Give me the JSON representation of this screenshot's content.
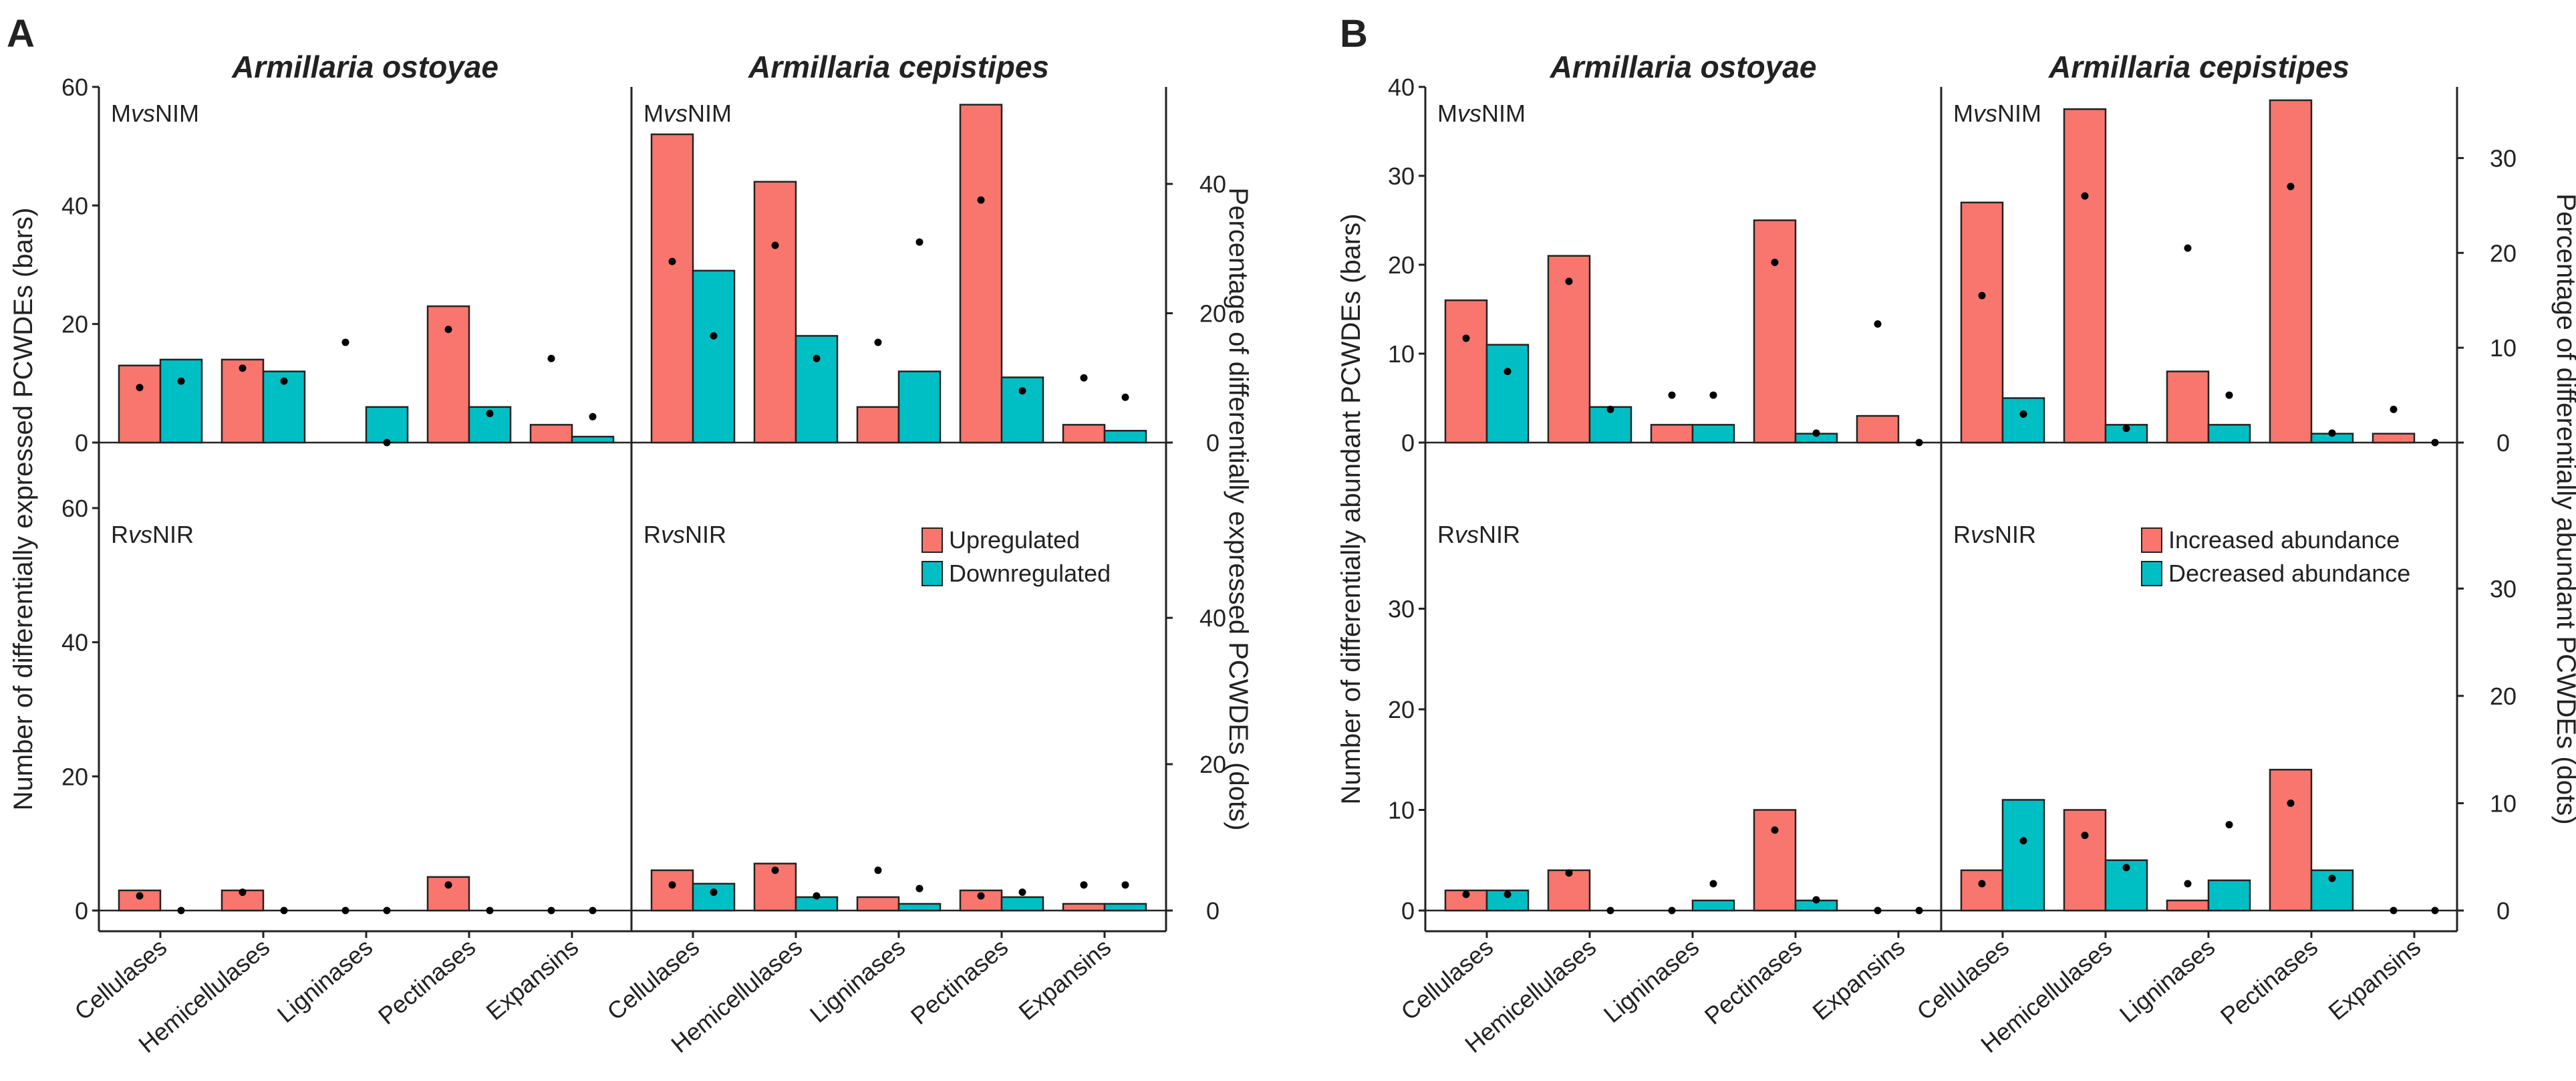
{
  "colors": {
    "up": "#F8766D",
    "down": "#00BFC4",
    "axis": "#222222",
    "dot": "#000000"
  },
  "categories": [
    "Cellulases",
    "Hemicellulases",
    "Ligninases",
    "Pectinases",
    "Expansins"
  ],
  "panels": [
    {
      "letter": "A",
      "species": [
        "Armillaria ostoyae",
        "Armillaria cepistipes"
      ],
      "ylabel_left": "Number of differentially expressed PCWDEs (bars)",
      "ylabel_right": "Percentage of differentially expressed PCWDEs (dots)",
      "left_ticks": [
        0,
        20,
        40,
        60
      ],
      "right_ticks": [
        0,
        20,
        40
      ],
      "left_lim": [
        0,
        60
      ],
      "right_lim": [
        0,
        55
      ],
      "legend": [
        "Upregulated",
        "Downregulated"
      ],
      "rows": [
        {
          "label": {
            "pre": "M",
            "vs": "vs",
            "post": "NIM"
          },
          "show_top_tick": true,
          "facets": [
            {
              "up": [
                13,
                14,
                0,
                23,
                3
              ],
              "down": [
                14,
                12,
                6,
                6,
                1
              ],
              "up_pct": [
                8.5,
                11.5,
                15.5,
                17.5,
                13
              ],
              "down_pct": [
                9.5,
                9.5,
                0,
                4.5,
                4
              ]
            },
            {
              "up": [
                52,
                44,
                6,
                57,
                3
              ],
              "down": [
                29,
                18,
                12,
                11,
                2
              ],
              "up_pct": [
                28,
                30.5,
                15.5,
                37.5,
                10
              ],
              "down_pct": [
                16.5,
                13,
                31,
                8,
                7
              ]
            }
          ]
        },
        {
          "label": {
            "pre": "R",
            "vs": "vs",
            "post": "NIR"
          },
          "show_top_tick": false,
          "facets": [
            {
              "up": [
                3,
                3,
                0,
                5,
                0
              ],
              "down": [
                0,
                0,
                0,
                0,
                0
              ],
              "up_pct": [
                2,
                2.5,
                0,
                3.5,
                0
              ],
              "down_pct": [
                0,
                0,
                0,
                0,
                0
              ]
            },
            {
              "up": [
                6,
                7,
                2,
                3,
                1
              ],
              "down": [
                4,
                2,
                1,
                2,
                1
              ],
              "up_pct": [
                3.5,
                5.5,
                5.5,
                2,
                3.5
              ],
              "down_pct": [
                2.5,
                2,
                3,
                2.5,
                3.5
              ]
            }
          ]
        }
      ]
    },
    {
      "letter": "B",
      "species": [
        "Armillaria ostoyae",
        "Armillaria cepistipes"
      ],
      "ylabel_left": "Number of differentially abundant PCWDEs (bars)",
      "ylabel_right": "Percentage of differentially abundant PCWDEs (dots)",
      "left_ticks": [
        0,
        10,
        20,
        30,
        40
      ],
      "right_ticks": [
        0,
        10,
        20,
        30
      ],
      "left_lim": [
        0,
        40
      ],
      "right_lim": [
        0,
        37.5
      ],
      "legend": [
        "Increased abundance",
        "Decreased abundance"
      ],
      "rows": [
        {
          "label": {
            "pre": "M",
            "vs": "vs",
            "post": "NIM"
          },
          "show_top_tick": true,
          "facets": [
            {
              "up": [
                16,
                21,
                2,
                25,
                3
              ],
              "down": [
                11,
                4,
                2,
                1,
                0
              ],
              "up_pct": [
                11,
                17,
                5,
                19,
                12.5
              ],
              "down_pct": [
                7.5,
                3.5,
                5,
                1,
                0
              ]
            },
            {
              "up": [
                27,
                37.5,
                8,
                38.5,
                1
              ],
              "down": [
                5,
                2,
                2,
                1,
                0
              ],
              "up_pct": [
                15.5,
                26,
                20.5,
                27,
                3.5
              ],
              "down_pct": [
                3,
                1.5,
                5,
                1,
                0
              ]
            }
          ]
        },
        {
          "label": {
            "pre": "R",
            "vs": "vs",
            "post": "NIR"
          },
          "show_top_tick": false,
          "facets": [
            {
              "up": [
                2,
                4,
                0,
                10,
                0
              ],
              "down": [
                2,
                0,
                1,
                1,
                0
              ],
              "up_pct": [
                1.5,
                3.5,
                0,
                7.5,
                0
              ],
              "down_pct": [
                1.5,
                0,
                2.5,
                1,
                0
              ]
            },
            {
              "up": [
                4,
                10,
                1,
                14,
                0
              ],
              "down": [
                11,
                5,
                3,
                4,
                0
              ],
              "up_pct": [
                2.5,
                7,
                2.5,
                10,
                0
              ],
              "down_pct": [
                6.5,
                4,
                8,
                3,
                0
              ]
            }
          ]
        }
      ]
    }
  ],
  "chart_data": [
    {
      "type": "bar",
      "title": "A",
      "ylabel": "Number of differentially expressed PCWDEs (bars)",
      "y2label": "Percentage of differentially expressed PCWDEs (dots)",
      "categories": [
        "Cellulases",
        "Hemicellulases",
        "Ligninases",
        "Pectinases",
        "Expansins"
      ],
      "ylim": [
        0,
        60
      ],
      "y2lim": [
        0,
        55
      ],
      "series": [
        {
          "name": "A. ostoyae MvsNIM Upregulated",
          "values": [
            13,
            14,
            0,
            23,
            3
          ]
        },
        {
          "name": "A. ostoyae MvsNIM Downregulated",
          "values": [
            14,
            12,
            6,
            6,
            1
          ]
        },
        {
          "name": "A. cepistipes MvsNIM Upregulated",
          "values": [
            52,
            44,
            6,
            57,
            3
          ]
        },
        {
          "name": "A. cepistipes MvsNIM Downregulated",
          "values": [
            29,
            18,
            12,
            11,
            2
          ]
        },
        {
          "name": "A. ostoyae RvsNIR Upregulated",
          "values": [
            3,
            3,
            0,
            5,
            0
          ]
        },
        {
          "name": "A. ostoyae RvsNIR Downregulated",
          "values": [
            0,
            0,
            0,
            0,
            0
          ]
        },
        {
          "name": "A. cepistipes RvsNIR Upregulated",
          "values": [
            6,
            7,
            2,
            3,
            1
          ]
        },
        {
          "name": "A. cepistipes RvsNIR Downregulated",
          "values": [
            4,
            2,
            1,
            2,
            1
          ]
        }
      ]
    },
    {
      "type": "bar",
      "title": "B",
      "ylabel": "Number of differentially abundant PCWDEs (bars)",
      "y2label": "Percentage of differentially abundant PCWDEs (dots)",
      "categories": [
        "Cellulases",
        "Hemicellulases",
        "Ligninases",
        "Pectinases",
        "Expansins"
      ],
      "ylim": [
        0,
        40
      ],
      "y2lim": [
        0,
        37.5
      ],
      "series": [
        {
          "name": "A. ostoyae MvsNIM Increased abundance",
          "values": [
            16,
            21,
            2,
            25,
            3
          ]
        },
        {
          "name": "A. ostoyae MvsNIM Decreased abundance",
          "values": [
            11,
            4,
            2,
            1,
            0
          ]
        },
        {
          "name": "A. cepistipes MvsNIM Increased abundance",
          "values": [
            27,
            37.5,
            8,
            38.5,
            1
          ]
        },
        {
          "name": "A. cepistipes MvsNIM Decreased abundance",
          "values": [
            5,
            2,
            2,
            1,
            0
          ]
        },
        {
          "name": "A. ostoyae RvsNIR Increased abundance",
          "values": [
            2,
            4,
            0,
            10,
            0
          ]
        },
        {
          "name": "A. ostoyae RvsNIR Decreased abundance",
          "values": [
            2,
            0,
            1,
            1,
            0
          ]
        },
        {
          "name": "A. cepistipes RvsNIR Increased abundance",
          "values": [
            4,
            10,
            1,
            14,
            0
          ]
        },
        {
          "name": "A. cepistipes RvsNIR Decreased abundance",
          "values": [
            11,
            5,
            3,
            4,
            0
          ]
        }
      ]
    }
  ]
}
